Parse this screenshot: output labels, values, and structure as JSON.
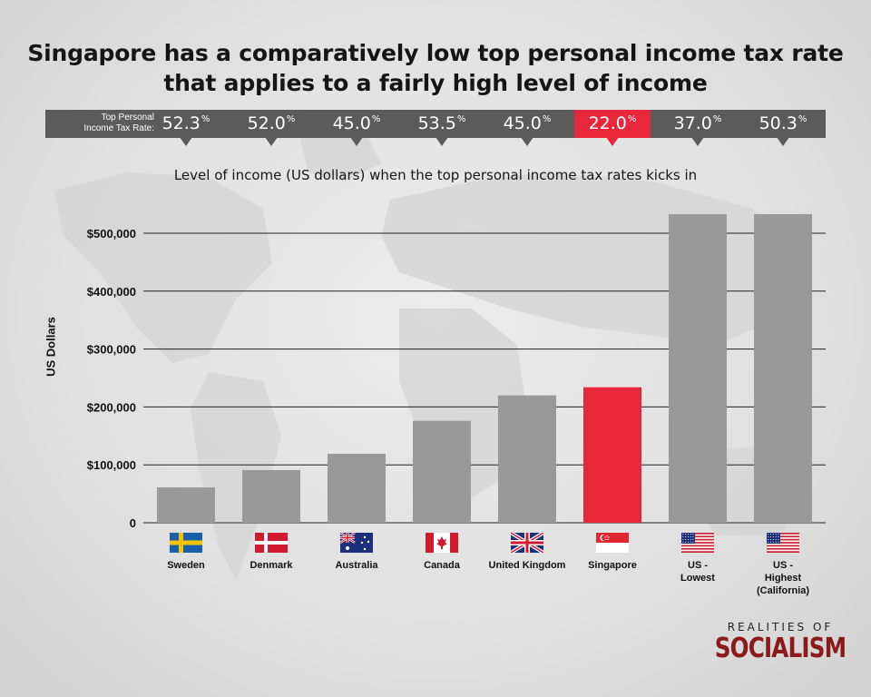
{
  "title_line1": "Singapore has a comparatively low top personal income tax rate",
  "title_line2": "that applies to a fairly high level of income",
  "rate_caption_line1": "Top Personal",
  "rate_caption_line2": "Income Tax Rate:",
  "pct_sign": "%",
  "rates": [
    "52.3",
    "52.0",
    "45.0",
    "53.5",
    "45.0",
    "22.0",
    "37.0",
    "50.3"
  ],
  "highlight_index": 5,
  "colors": {
    "bar": "#999999",
    "highlight": "#e8283a",
    "rate_bar": "#5b5b5b",
    "brand": "#8b1a1a"
  },
  "brand": {
    "top": "REALITIES OF",
    "main": "SOCIALISM"
  },
  "flags": [
    "sweden-flag",
    "denmark-flag",
    "australia-flag",
    "canada-flag",
    "uk-flag",
    "singapore-flag",
    "us-flag",
    "us-flag"
  ],
  "chart_data": {
    "type": "bar",
    "title": "Level of income (US dollars) when the top personal income tax rates kicks in",
    "ylabel": "US Dollars",
    "categories": [
      [
        "Sweden"
      ],
      [
        "Denmark"
      ],
      [
        "Australia"
      ],
      [
        "Canada"
      ],
      [
        "United Kingdom"
      ],
      [
        "Singapore"
      ],
      [
        "US -",
        "Lowest"
      ],
      [
        "US -",
        "Highest",
        "(California)"
      ]
    ],
    "values": [
      61000,
      91000,
      119000,
      176000,
      220000,
      234000,
      533000,
      533000
    ],
    "ylim": [
      0,
      500000
    ],
    "yticks": [
      0,
      100000,
      200000,
      300000,
      400000,
      500000
    ],
    "ytick_labels": [
      "0",
      "$100,000",
      "$200,000",
      "$300,000",
      "$400,000",
      "$500,000"
    ],
    "grid": true
  }
}
